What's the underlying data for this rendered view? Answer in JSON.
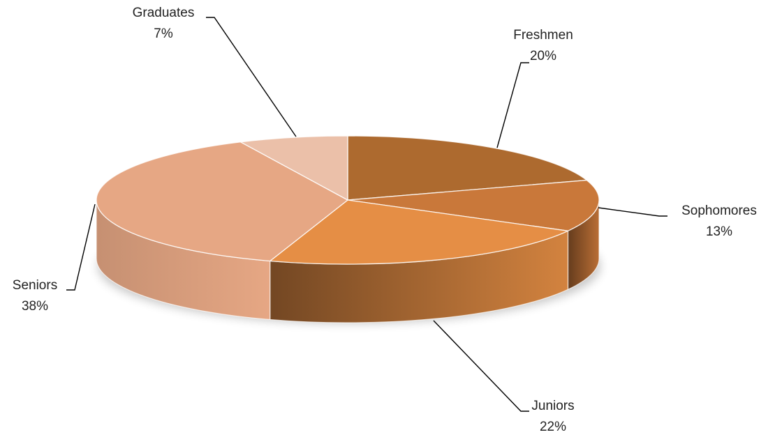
{
  "chart_data": {
    "type": "pie",
    "style": "3d",
    "title": "",
    "start_angle_deg": 0,
    "direction": "clockwise",
    "slices": [
      {
        "label": "Freshmen",
        "value": 20,
        "value_label": "20%",
        "color": "#AD6A2F"
      },
      {
        "label": "Sophomores",
        "value": 13,
        "value_label": "13%",
        "color": "#C9783A"
      },
      {
        "label": "Juniors",
        "value": 22,
        "value_label": "22%",
        "color": "#E58E45"
      },
      {
        "label": "Seniors",
        "value": 38,
        "value_label": "38%",
        "color": "#E6A784"
      },
      {
        "label": "Graduates",
        "value": 7,
        "value_label": "7%",
        "color": "#EBC0A9"
      }
    ],
    "legend": "none",
    "data_labels": "outside with leader lines"
  }
}
